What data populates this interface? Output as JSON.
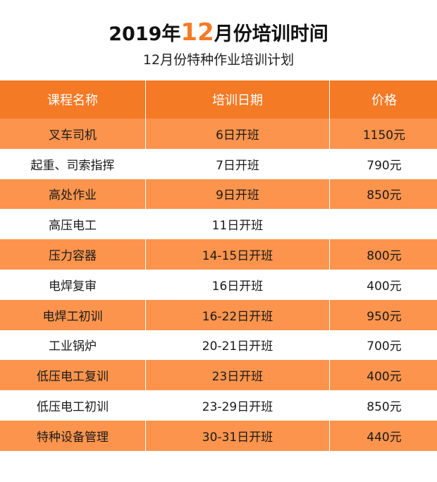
{
  "title": {
    "prefix": "2019年",
    "highlight": "12",
    "suffix": "月份培训时间"
  },
  "subtitle": "12月份特种作业培训计划",
  "headers": [
    "课程名称",
    "培训日期",
    "价格"
  ],
  "rows": [
    [
      "叉车司机",
      "6日开班",
      "1150元"
    ],
    [
      "起重、司索指挥",
      "7日开班",
      "790元"
    ],
    [
      "高处作业",
      "9日开班",
      "850元"
    ],
    [
      "高压电工",
      "11日开班",
      ""
    ],
    [
      "压力容器",
      "14-15日开班",
      "800元"
    ],
    [
      "电焊复审",
      "16日开班",
      "400元"
    ],
    [
      "电焊工初训",
      "16-22日开班",
      "950元"
    ],
    [
      "工业锅炉",
      "20-21日开班",
      "700元"
    ],
    [
      "低压电工复训",
      "23日开班",
      "400元"
    ],
    [
      "低压电工初训",
      "23-29日开班",
      "850元"
    ],
    [
      "特种设备管理",
      "30-31日开班",
      "440元"
    ]
  ],
  "colors": {
    "accent": "#f47a25",
    "row_fill": "#fc944d",
    "row_alt": "#ffffff"
  }
}
